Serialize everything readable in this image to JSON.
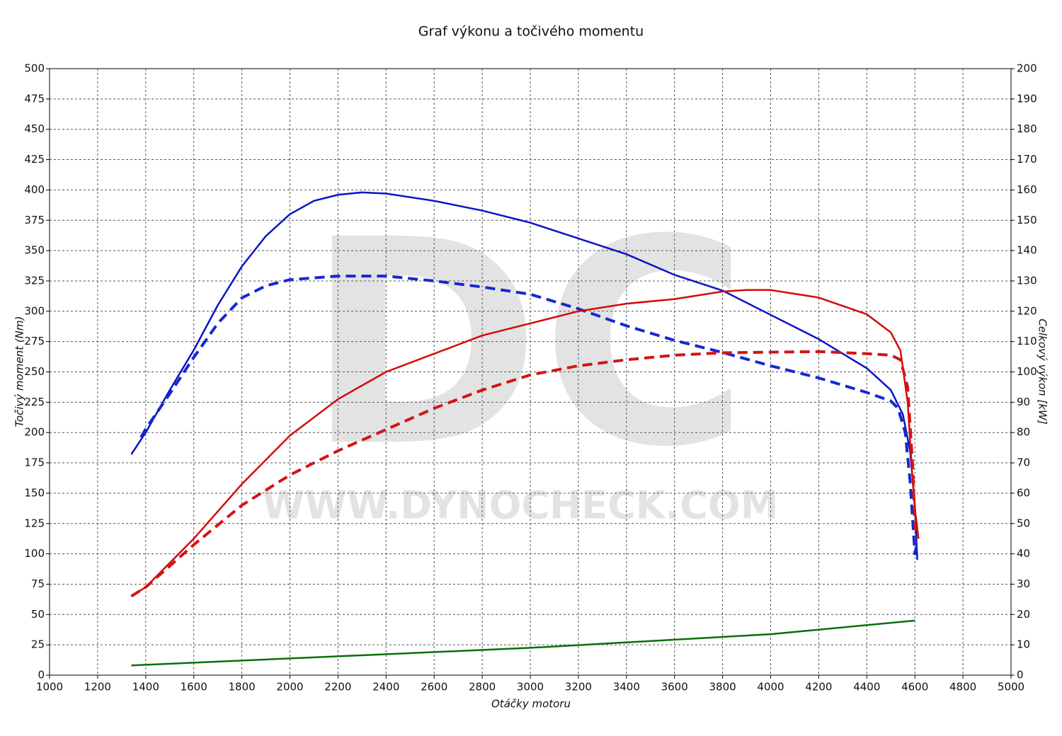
{
  "chart_data": {
    "type": "line",
    "title": "Graf výkonu a točivého momentu",
    "xlabel": "Otáčky motoru",
    "ylabel": "Točivý moment (Nm)",
    "y2label": "Celkový výkon [kW]",
    "watermark": [
      "DC",
      "WWW.DYNOCHECK.COM"
    ],
    "grid": true,
    "xlim": [
      1000,
      5000
    ],
    "xticks": [
      1000,
      1200,
      1400,
      1600,
      1800,
      2000,
      2200,
      2400,
      2600,
      2800,
      3000,
      3200,
      3400,
      3600,
      3800,
      4000,
      4200,
      4400,
      4600,
      4800,
      5000
    ],
    "ylim": [
      0,
      500
    ],
    "yticks": [
      0,
      25,
      50,
      75,
      100,
      125,
      150,
      175,
      200,
      225,
      250,
      275,
      300,
      325,
      350,
      375,
      400,
      425,
      450,
      475,
      500
    ],
    "y2lim": [
      0,
      200
    ],
    "y2ticks": [
      0,
      10,
      20,
      30,
      40,
      50,
      60,
      70,
      80,
      90,
      100,
      110,
      120,
      130,
      140,
      150,
      160,
      170,
      180,
      190,
      200
    ],
    "series": [
      {
        "color": "#0a14c8",
        "style": "solid",
        "axis": "y",
        "x": [
          1340,
          1400,
          1500,
          1600,
          1700,
          1800,
          1900,
          2000,
          2100,
          2200,
          2300,
          2400,
          2600,
          2800,
          3000,
          3200,
          3400,
          3600,
          3800,
          4000,
          4200,
          4400,
          4500,
          4550,
          4580,
          4600,
          4610
        ],
        "values": [
          182,
          200,
          235,
          268,
          305,
          337,
          362,
          380,
          391,
          396,
          398,
          397,
          391,
          383,
          373,
          360,
          347,
          330,
          317,
          297,
          277,
          253,
          235,
          215,
          185,
          140,
          95
        ]
      },
      {
        "color": "#1428d2",
        "style": "dashed",
        "axis": "y",
        "x": [
          1380,
          1400,
          1500,
          1600,
          1700,
          1800,
          1900,
          2000,
          2200,
          2400,
          2600,
          2800,
          3000,
          3200,
          3400,
          3600,
          3800,
          4000,
          4200,
          4400,
          4500,
          4530,
          4560,
          4580,
          4600,
          4610
        ],
        "values": [
          196,
          203,
          232,
          262,
          290,
          311,
          321,
          326,
          329,
          329,
          325,
          320,
          314,
          302,
          288,
          276,
          266,
          255,
          245,
          233,
          226,
          220,
          200,
          160,
          100,
          110
        ]
      },
      {
        "color": "#d20a0a",
        "style": "solid",
        "axis": "y2",
        "x": [
          1340,
          1400,
          1600,
          1800,
          2000,
          2200,
          2400,
          2600,
          2800,
          3000,
          3200,
          3400,
          3600,
          3800,
          3900,
          4000,
          4200,
          4400,
          4500,
          4540,
          4570,
          4590,
          4600,
          4615
        ],
        "values": [
          26,
          29,
          45,
          63,
          79,
          91,
          100,
          106,
          112,
          116,
          120,
          122.5,
          124,
          126.5,
          127,
          127,
          124.5,
          119,
          113,
          107,
          90,
          65,
          55,
          45
        ]
      },
      {
        "color": "#d21414",
        "style": "dashed",
        "axis": "y2",
        "x": [
          1340,
          1400,
          1600,
          1800,
          2000,
          2200,
          2400,
          2600,
          2800,
          3000,
          3200,
          3400,
          3600,
          3800,
          4000,
          4200,
          4400,
          4500,
          4540,
          4570,
          4590,
          4600,
          4610
        ],
        "values": [
          26,
          29,
          43,
          56,
          66,
          74,
          81,
          88,
          94,
          99,
          102,
          104,
          105.5,
          106.3,
          106.5,
          106.7,
          106,
          105.5,
          104,
          95,
          70,
          50,
          45
        ]
      },
      {
        "color": "#0a6e0a",
        "style": "solid",
        "axis": "y2",
        "x": [
          1340,
          2000,
          3000,
          4000,
          4600
        ],
        "values": [
          3.2,
          5.5,
          9,
          13.5,
          18
        ]
      }
    ]
  }
}
